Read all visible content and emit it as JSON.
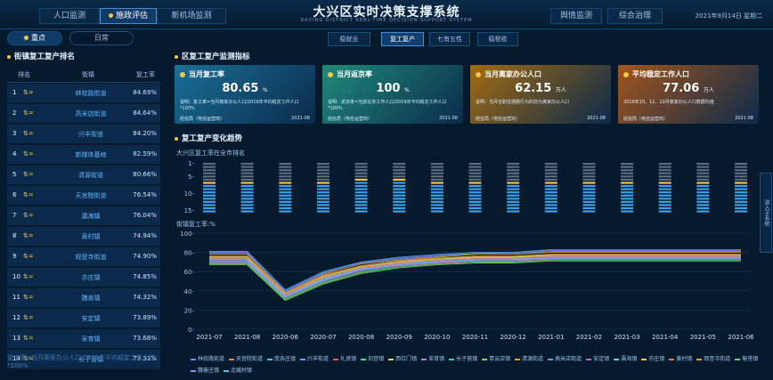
{
  "header": {
    "title": "大兴区实时决策支撑系统",
    "subtitle": "DAXING DISTRICT REAL-TIME DECISION SUPPORT SYSTEM",
    "date": "2021年9月14日 星期二"
  },
  "nav": {
    "left": [
      "人口监测",
      "施政评估",
      "新机场监测"
    ],
    "right": [
      "舆情监测",
      "综合治理"
    ],
    "active": "施政评估"
  },
  "subnav": [
    "稳就业",
    "复工复产",
    "七有五性",
    "稳税收"
  ],
  "subnav_active": "复工复产",
  "left_tabs": [
    "重点",
    "日常"
  ],
  "left": {
    "title": "街镇复工复产排名",
    "headers": [
      "排名",
      "街镇",
      "复工率"
    ],
    "rows": [
      {
        "rank": "1",
        "name": "林校路街道",
        "value": "84.69%"
      },
      {
        "rank": "2",
        "name": "高米店街道",
        "value": "84.64%"
      },
      {
        "rank": "3",
        "name": "兴丰街道",
        "value": "84.20%"
      },
      {
        "rank": "4",
        "name": "新媒体基地",
        "value": "82.59%"
      },
      {
        "rank": "5",
        "name": "清源街道",
        "value": "80.66%"
      },
      {
        "rank": "6",
        "name": "天宫院街道",
        "value": "76.54%"
      },
      {
        "rank": "7",
        "name": "瀛海镇",
        "value": "76.04%"
      },
      {
        "rank": "8",
        "name": "黄村镇",
        "value": "74.94%"
      },
      {
        "rank": "9",
        "name": "观音寺街道",
        "value": "74.90%"
      },
      {
        "rank": "10",
        "name": "亦庄镇",
        "value": "74.85%"
      },
      {
        "rank": "11",
        "name": "魏善镇",
        "value": "74.32%"
      },
      {
        "rank": "12",
        "name": "安定镇",
        "value": "73.89%"
      },
      {
        "rank": "13",
        "name": "采育镇",
        "value": "73.68%"
      },
      {
        "rank": "14",
        "name": "长子营镇",
        "value": "73.31%"
      }
    ],
    "footnote": "复工率=当月离家办公人口/2019年平均稳定工作人口*100%"
  },
  "indicators": {
    "title": "区复工复产监测指标",
    "cards": [
      {
        "title": "当月复工率",
        "value": "80.65",
        "unit": "%",
        "note": "说明：复工率=当月离家办公人口/2019年平均稳定工作人口*100%",
        "source": "经信局（电信运营商）",
        "date": "2021-08",
        "color": "#1a6f96"
      },
      {
        "title": "当月返京率",
        "value": "100",
        "unit": "%",
        "note": "说明：返京率=当前在京工作人口/2019年平均稳定工作人口*100%",
        "source": "经信局（电信运营商）",
        "date": "2021-08",
        "color": "#1f8a7a"
      },
      {
        "title": "当月离家办公人口",
        "value": "62.15",
        "unit": "万人",
        "note": "说明：当月在职住通勤行为的前为离家办公人口",
        "source": "经信局（电信运营商）",
        "date": "2021-08",
        "color": "#a36b12"
      },
      {
        "title": "平均稳定工作人口",
        "value": "77.06",
        "unit": "万人",
        "note": "2019年10、11、12月离家办公人口数据均值",
        "source": "经信局（电信运营商）",
        "date": "2021-08",
        "color": "#a3551c"
      }
    ]
  },
  "trend": {
    "title": "复工复产变化趋势",
    "rank_label": "大兴区复工率在全市排名",
    "rate_label": "街镇复工率:%",
    "side_button": "进入子系统"
  },
  "chart_data": {
    "type": "line",
    "x": [
      "2021-07",
      "2021-08",
      "2020-06",
      "2020-07",
      "2020-08",
      "2020-09",
      "2020-10",
      "2020-11",
      "2020-12",
      "2021-01",
      "2021-02",
      "2021-03",
      "2021-04",
      "2021-05",
      "2021-06"
    ],
    "ylim": [
      0,
      100
    ],
    "yticks": [
      0,
      20,
      40,
      60,
      80,
      100
    ],
    "rank_yticks": [
      1,
      5,
      10,
      15
    ],
    "rank_positions": [
      7,
      7,
      7,
      7,
      6,
      6,
      7,
      7,
      7,
      7,
      7,
      7,
      7,
      7,
      7
    ],
    "series": [
      {
        "name": "林校路街道",
        "color": "#8e7cff",
        "values": [
          80,
          80,
          39,
          58,
          70,
          74,
          77,
          79,
          80,
          82,
          82,
          82,
          82,
          82,
          82
        ]
      },
      {
        "name": "天宫院街道",
        "color": "#f08a3c",
        "values": [
          73,
          73,
          35,
          53,
          65,
          70,
          72,
          74,
          74,
          76,
          76,
          76,
          76,
          76,
          76
        ]
      },
      {
        "name": "庞各庄镇",
        "color": "#43c7e0",
        "values": [
          76,
          76,
          37,
          55,
          66,
          71,
          73,
          76,
          76,
          78,
          78,
          78,
          78,
          78,
          78
        ]
      },
      {
        "name": "兴丰街道",
        "color": "#5aa0ff",
        "values": [
          79,
          79,
          40,
          59,
          69,
          73,
          76,
          79,
          79,
          81,
          81,
          81,
          81,
          81,
          81
        ]
      },
      {
        "name": "礼贤镇",
        "color": "#e85a7a",
        "values": [
          70,
          70,
          33,
          50,
          62,
          67,
          70,
          72,
          72,
          74,
          74,
          74,
          74,
          74,
          74
        ]
      },
      {
        "name": "旧宫镇",
        "color": "#57d57f",
        "values": [
          74,
          74,
          36,
          54,
          64,
          69,
          72,
          75,
          75,
          77,
          77,
          77,
          77,
          77,
          77
        ]
      },
      {
        "name": "西红门镇",
        "color": "#d4d76a",
        "values": [
          72,
          72,
          34,
          52,
          63,
          68,
          71,
          73,
          73,
          75,
          75,
          75,
          75,
          75,
          75
        ]
      },
      {
        "name": "采育镇",
        "color": "#b77ee6",
        "values": [
          71,
          71,
          34,
          51,
          62,
          67,
          70,
          72,
          72,
          73,
          73,
          73,
          73,
          73,
          73
        ]
      },
      {
        "name": "长子营镇",
        "color": "#3fd0b5",
        "values": [
          69,
          69,
          32,
          49,
          60,
          66,
          69,
          71,
          71,
          73,
          73,
          73,
          73,
          73,
          73
        ]
      },
      {
        "name": "青云店镇",
        "color": "#7fd44a",
        "values": [
          68,
          68,
          31,
          48,
          59,
          65,
          68,
          70,
          70,
          72,
          72,
          72,
          72,
          72,
          72
        ]
      },
      {
        "name": "清源街道",
        "color": "#ff9f1c",
        "values": [
          78,
          78,
          38,
          57,
          68,
          72,
          75,
          78,
          78,
          80,
          80,
          80,
          80,
          80,
          80
        ]
      },
      {
        "name": "高米店街道",
        "color": "#4aa3df",
        "values": [
          81,
          81,
          41,
          60,
          70,
          75,
          78,
          80,
          80,
          83,
          83,
          83,
          83,
          83,
          83
        ]
      },
      {
        "name": "安定镇",
        "color": "#c86bd1",
        "values": [
          70,
          70,
          33,
          50,
          61,
          66,
          69,
          71,
          71,
          73,
          73,
          73,
          73,
          73,
          73
        ]
      },
      {
        "name": "瀛海镇",
        "color": "#5ed1e8",
        "values": [
          73,
          73,
          35,
          53,
          64,
          69,
          72,
          74,
          74,
          76,
          76,
          76,
          76,
          76,
          76
        ]
      },
      {
        "name": "亦庄镇",
        "color": "#f4d03f",
        "values": [
          75,
          75,
          37,
          55,
          65,
          70,
          73,
          75,
          75,
          77,
          77,
          77,
          77,
          77,
          77
        ]
      },
      {
        "name": "黄村镇",
        "color": "#f27b4f",
        "values": [
          74,
          74,
          36,
          54,
          64,
          69,
          72,
          74,
          74,
          76,
          76,
          76,
          76,
          76,
          76
        ]
      },
      {
        "name": "观音寺街道",
        "color": "#e9a23b",
        "values": [
          76,
          76,
          37,
          56,
          66,
          71,
          74,
          76,
          76,
          78,
          78,
          78,
          78,
          78,
          78
        ]
      },
      {
        "name": "榆垡镇",
        "color": "#6fd66f",
        "values": [
          67,
          67,
          30,
          47,
          58,
          64,
          67,
          69,
          69,
          71,
          71,
          71,
          71,
          71,
          71
        ]
      },
      {
        "name": "魏善庄镇",
        "color": "#9c8cff",
        "values": [
          72,
          72,
          35,
          52,
          63,
          68,
          71,
          73,
          73,
          75,
          75,
          75,
          75,
          75,
          75
        ]
      },
      {
        "name": "北臧村镇",
        "color": "#4fc3f7",
        "values": [
          71,
          71,
          34,
          51,
          62,
          67,
          70,
          72,
          72,
          74,
          74,
          74,
          74,
          74,
          74
        ]
      }
    ]
  }
}
